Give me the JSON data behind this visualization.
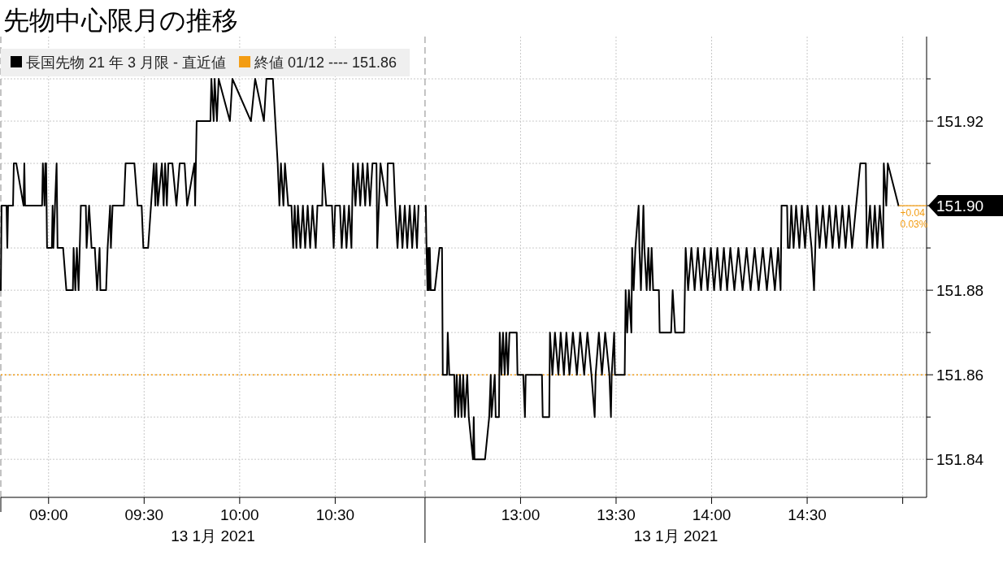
{
  "chart_data": [
    {
      "type": "line",
      "title": "先物中心限月の推移",
      "xlabel": "13 1月 2021",
      "legend": "top left",
      "grid": true,
      "tick_labels": "x",
      "marker": "none",
      "line_style": "solid",
      "xlim": [
        8.75,
        10.97
      ],
      "xticks": [
        {
          "value": 9,
          "label": "09:00"
        },
        {
          "value": 9.5,
          "label": "09:30"
        },
        {
          "value": 10,
          "label": "10:00"
        },
        {
          "value": 10.5,
          "label": "10:30"
        }
      ],
      "ylim": [
        151.831,
        151.94
      ],
      "yticks": [
        151.84,
        151.85,
        151.86,
        151.87,
        151.88,
        151.89,
        151.9,
        151.91,
        151.92,
        151.93
      ],
      "ref_lines": [
        {
          "axis": "y",
          "value": 151.86,
          "label": "終値 01/12 ---- 151.86",
          "color": "#f39c12",
          "line_style": "dotted"
        }
      ],
      "series": [
        {
          "name": "長国先物 21 年 3 月限 - 直近値",
          "color": "#000000",
          "x": [
            8.75,
            8.754,
            8.78,
            8.784,
            8.788,
            8.814,
            8.818,
            8.831,
            8.869,
            8.873,
            8.877,
            8.966,
            8.97,
            8.979,
            8.983,
            8.987,
            8.992,
            9.017,
            9.021,
            9.025,
            9.042,
            9.047,
            9.076,
            9.093,
            9.127,
            9.131,
            9.14,
            9.148,
            9.157,
            9.169,
            9.195,
            9.199,
            9.212,
            9.225,
            9.242,
            9.254,
            9.267,
            9.271,
            9.301,
            9.309,
            9.322,
            9.326,
            9.335,
            9.394,
            9.403,
            9.449,
            9.466,
            9.487,
            9.496,
            9.521,
            9.551,
            9.559,
            9.564,
            9.572,
            9.593,
            9.602,
            9.61,
            9.619,
            9.627,
            9.648,
            9.669,
            9.686,
            9.712,
            9.725,
            9.763,
            9.767,
            9.771,
            9.775,
            9.847,
            9.852,
            9.864,
            9.869,
            9.881,
            9.89,
            9.949,
            9.962,
            10.059,
            10.081,
            10.127,
            10.14,
            10.174,
            10.199,
            10.208,
            10.216,
            10.229,
            10.237,
            10.254,
            10.271,
            10.28,
            10.288,
            10.297,
            10.305,
            10.318,
            10.331,
            10.343,
            10.356,
            10.369,
            10.381,
            10.398,
            10.407,
            10.432,
            10.436,
            10.453,
            10.483,
            10.492,
            10.5,
            10.525,
            10.534,
            10.547,
            10.559,
            10.572,
            10.585,
            10.593,
            10.606,
            10.619,
            10.631,
            10.644,
            10.657,
            10.669,
            10.682,
            10.695,
            10.716,
            10.72,
            10.737,
            10.771,
            10.775,
            10.805,
            10.814,
            10.826,
            10.839,
            10.852,
            10.864,
            10.877,
            10.89,
            10.903,
            10.915,
            10.928,
            10.936
          ],
          "values": [
            151.88,
            151.9,
            151.9,
            151.89,
            151.9,
            151.9,
            151.91,
            151.91,
            151.9,
            151.91,
            151.9,
            151.9,
            151.91,
            151.9,
            151.91,
            151.91,
            151.89,
            151.89,
            151.9,
            151.89,
            151.91,
            151.89,
            151.89,
            151.88,
            151.88,
            151.89,
            151.88,
            151.89,
            151.88,
            151.9,
            151.9,
            151.89,
            151.9,
            151.89,
            151.89,
            151.88,
            151.89,
            151.88,
            151.88,
            151.89,
            151.9,
            151.89,
            151.9,
            151.9,
            151.91,
            151.91,
            151.9,
            151.9,
            151.89,
            151.89,
            151.91,
            151.9,
            151.91,
            151.9,
            151.91,
            151.9,
            151.91,
            151.9,
            151.91,
            151.91,
            151.9,
            151.91,
            151.91,
            151.9,
            151.91,
            151.9,
            151.91,
            151.92,
            151.92,
            151.93,
            151.92,
            151.93,
            151.92,
            151.93,
            151.92,
            151.93,
            151.92,
            151.93,
            151.92,
            151.93,
            151.93,
            151.91,
            151.9,
            151.91,
            151.9,
            151.91,
            151.9,
            151.9,
            151.89,
            151.9,
            151.89,
            151.9,
            151.89,
            151.9,
            151.89,
            151.9,
            151.89,
            151.9,
            151.89,
            151.9,
            151.9,
            151.91,
            151.9,
            151.9,
            151.89,
            151.9,
            151.9,
            151.89,
            151.9,
            151.89,
            151.9,
            151.89,
            151.91,
            151.9,
            151.91,
            151.9,
            151.91,
            151.9,
            151.91,
            151.9,
            151.91,
            151.91,
            151.89,
            151.91,
            151.9,
            151.91,
            151.91,
            151.9,
            151.89,
            151.9,
            151.89,
            151.9,
            151.89,
            151.9,
            151.89,
            151.9,
            151.89,
            151.9
          ]
        }
      ]
    },
    {
      "type": "line",
      "xlabel": "13 1月 2021",
      "grid": true,
      "marker": "none",
      "line_style": "solid",
      "xlim": [
        12.5,
        15.125
      ],
      "xticks": [
        {
          "value": 13,
          "label": "13:00"
        },
        {
          "value": 13.5,
          "label": "13:30"
        },
        {
          "value": 14,
          "label": "14:00"
        },
        {
          "value": 14.5,
          "label": "14:30"
        },
        {
          "value": 15,
          "label": null
        }
      ],
      "ylim": [
        151.831,
        151.94
      ],
      "yticks": [
        {
          "value": 151.84,
          "label": "151.84"
        },
        {
          "value": 151.85,
          "label": null
        },
        {
          "value": 151.86,
          "label": "151.86"
        },
        {
          "value": 151.87,
          "label": null
        },
        {
          "value": 151.88,
          "label": "151.88"
        },
        {
          "value": 151.89,
          "label": null
        },
        {
          "value": 151.9,
          "label": "151.90"
        },
        {
          "value": 151.91,
          "label": null
        },
        {
          "value": 151.92,
          "label": "151.92"
        },
        {
          "value": 151.93,
          "label": null
        }
      ],
      "ref_lines": [
        {
          "axis": "y",
          "value": 151.86,
          "color": "#f39c12",
          "line_style": "dotted"
        }
      ],
      "annotations": [
        {
          "text": "+0.04",
          "x": 14.978,
          "y": 151.9
        },
        {
          "text": "0.03%",
          "x": 14.978,
          "y": 151.9
        }
      ],
      "series": [
        {
          "color": "#000000",
          "x": [
            12.504,
            12.508,
            12.513,
            12.517,
            12.521,
            12.525,
            12.53,
            12.551,
            12.576,
            12.589,
            12.593,
            12.615,
            12.619,
            12.627,
            12.653,
            12.657,
            12.666,
            12.674,
            12.683,
            12.691,
            12.7,
            12.708,
            12.721,
            12.729,
            12.751,
            12.755,
            12.759,
            12.814,
            12.836,
            12.844,
            12.848,
            12.865,
            12.87,
            12.887,
            12.891,
            12.9,
            12.908,
            12.917,
            12.925,
            12.934,
            12.942,
            12.98,
            12.984,
            13.014,
            13.023,
            13.027,
            13.112,
            13.116,
            13.15,
            13.154,
            13.167,
            13.18,
            13.198,
            13.21,
            13.227,
            13.24,
            13.256,
            13.274,
            13.295,
            13.312,
            13.333,
            13.35,
            13.371,
            13.388,
            13.393,
            13.41,
            13.426,
            13.443,
            13.465,
            13.473,
            13.477,
            13.49,
            13.494,
            13.545,
            13.55,
            13.558,
            13.567,
            13.58,
            13.584,
            13.592,
            13.601,
            13.618,
            13.622,
            13.63,
            13.643,
            13.648,
            13.66,
            13.669,
            13.677,
            13.686,
            13.694,
            13.724,
            13.728,
            13.788,
            13.796,
            13.809,
            13.856,
            13.864,
            13.877,
            13.894,
            13.911,
            13.928,
            13.945,
            13.962,
            13.979,
            13.996,
            14.013,
            14.03,
            14.047,
            14.064,
            14.081,
            14.098,
            14.119,
            14.14,
            14.162,
            14.183,
            14.204,
            14.225,
            14.246,
            14.268,
            14.289,
            14.31,
            14.331,
            14.348,
            14.361,
            14.366,
            14.395,
            14.399,
            14.408,
            14.417,
            14.429,
            14.442,
            14.459,
            14.472,
            14.489,
            14.502,
            14.523,
            14.536,
            14.549,
            14.565,
            14.582,
            14.599,
            14.616,
            14.633,
            14.65,
            14.667,
            14.684,
            14.701,
            14.718,
            14.735,
            14.756,
            14.778,
            14.807,
            14.812,
            14.829,
            14.842,
            14.854,
            14.867,
            14.88,
            14.897,
            14.901,
            14.914,
            14.922,
            14.978
          ],
          "values": [
            151.9,
            151.89,
            151.88,
            151.89,
            151.88,
            151.89,
            151.88,
            151.88,
            151.89,
            151.89,
            151.86,
            151.86,
            151.87,
            151.86,
            151.86,
            151.85,
            151.86,
            151.85,
            151.86,
            151.85,
            151.86,
            151.85,
            151.86,
            151.85,
            151.84,
            151.85,
            151.84,
            151.84,
            151.85,
            151.86,
            151.85,
            151.86,
            151.85,
            151.85,
            151.87,
            151.86,
            151.87,
            151.86,
            151.87,
            151.86,
            151.87,
            151.87,
            151.86,
            151.86,
            151.85,
            151.86,
            151.86,
            151.85,
            151.85,
            151.87,
            151.86,
            151.87,
            151.86,
            151.87,
            151.86,
            151.87,
            151.86,
            151.87,
            151.86,
            151.87,
            151.86,
            151.87,
            151.86,
            151.85,
            151.86,
            151.87,
            151.86,
            151.87,
            151.86,
            151.85,
            151.86,
            151.87,
            151.86,
            151.86,
            151.88,
            151.87,
            151.88,
            151.87,
            151.89,
            151.88,
            151.89,
            151.9,
            151.89,
            151.88,
            151.9,
            151.89,
            151.88,
            151.89,
            151.88,
            151.89,
            151.88,
            151.88,
            151.87,
            151.87,
            151.88,
            151.87,
            151.87,
            151.89,
            151.88,
            151.89,
            151.88,
            151.89,
            151.88,
            151.89,
            151.88,
            151.89,
            151.88,
            151.89,
            151.88,
            151.89,
            151.88,
            151.89,
            151.88,
            151.89,
            151.88,
            151.89,
            151.88,
            151.89,
            151.88,
            151.89,
            151.88,
            151.89,
            151.88,
            151.89,
            151.88,
            151.9,
            151.9,
            151.89,
            151.89,
            151.9,
            151.89,
            151.9,
            151.89,
            151.9,
            151.89,
            151.9,
            151.89,
            151.88,
            151.9,
            151.89,
            151.9,
            151.89,
            151.9,
            151.89,
            151.9,
            151.89,
            151.9,
            151.89,
            151.9,
            151.89,
            151.9,
            151.91,
            151.91,
            151.89,
            151.9,
            151.89,
            151.9,
            151.89,
            151.9,
            151.89,
            151.91,
            151.9,
            151.91,
            151.9
          ]
        }
      ]
    }
  ]
}
